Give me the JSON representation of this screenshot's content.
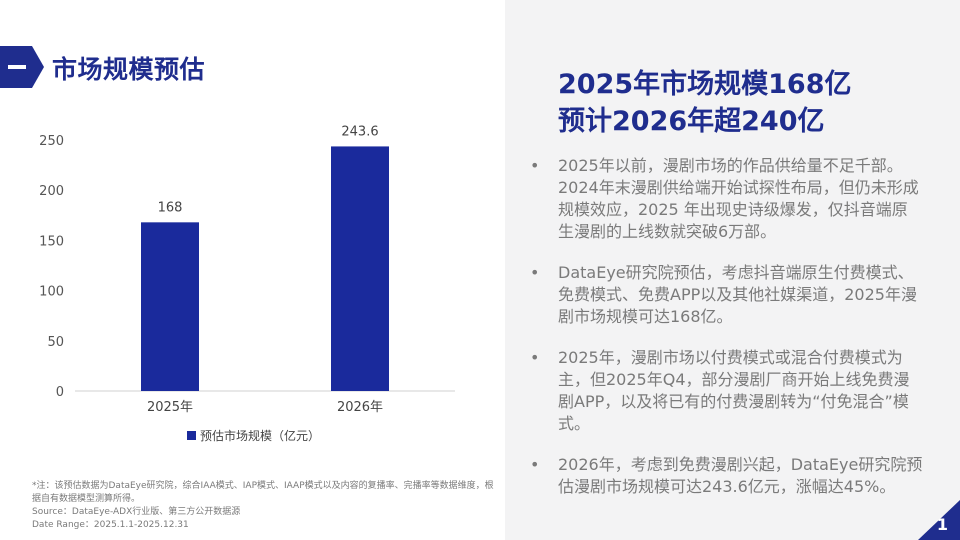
{
  "section": {
    "title": "市场规模预估"
  },
  "headline": {
    "line1": "2025年市场规模168亿",
    "line2": "预计2026年超240亿"
  },
  "bullets": [
    "2025年以前，漫剧市场的作品供给量不足千部。2024年末漫剧供给端开始试探性布局，但仍未形成规模效应，2025 年出现史诗级爆发，仅抖音端原生漫剧的上线数就突破6万部。",
    "DataEye研究院预估，考虑抖音端原生付费模式、免费模式、免费APP以及其他社媒渠道，2025年漫剧市场规模可达168亿。",
    "2025年，漫剧市场以付费模式或混合付费模式为主，但2025年Q4，部分漫剧厂商开始上线免费漫剧APP，以及将已有的付费漫剧转为“付免混合”模式。",
    "2026年，考虑到免费漫剧兴起，DataEye研究院预估漫剧市场规模可达243.6亿元，涨幅达45%。"
  ],
  "bullet_symbol": "•",
  "notes": {
    "line1": "*注：该预估数据为DataEye研究院，综合IAA模式、IAP模式、IAAP模式以及内容的复播率、完播率等数据维度，根据自有数据模型测算所得。",
    "line2": "Source：DataEye-ADX行业版、第三方公开数据源",
    "line3": "Date Range：2025.1.1-2025.12.31"
  },
  "page_number": "1",
  "colors": {
    "accent": "#1f2d8e",
    "bar": "#1a2a9c",
    "panel": "#f3f3f4"
  },
  "chart_data": {
    "type": "bar",
    "categories": [
      "2025年",
      "2026年"
    ],
    "series": [
      {
        "name": "预估市场规模（亿元）",
        "values": [
          168,
          243.6
        ]
      }
    ],
    "data_labels": [
      "168",
      "243.6"
    ],
    "yticks": [
      "0",
      "50",
      "100",
      "150",
      "200",
      "250"
    ],
    "ylim": [
      0,
      250
    ],
    "grid": false,
    "legend": "bottom",
    "title": "",
    "xlabel": "",
    "ylabel": ""
  }
}
